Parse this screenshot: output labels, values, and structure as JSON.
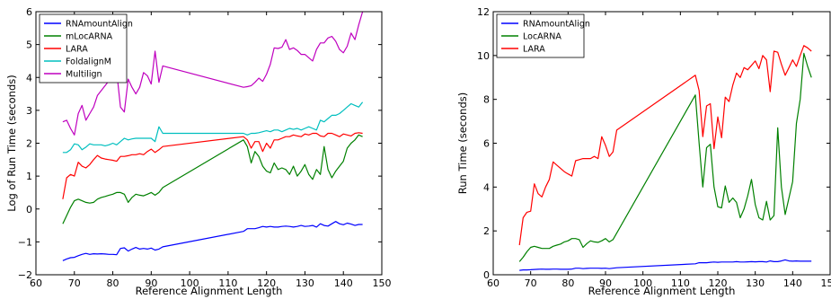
{
  "chart_data": [
    {
      "type": "line",
      "title": "",
      "xlabel": "Reference Alignment Length",
      "ylabel": "Log of Run Time (seconds)",
      "xlim": [
        60,
        150
      ],
      "ylim": [
        -2,
        6
      ],
      "xticks": [
        "60",
        "70",
        "80",
        "90",
        "100",
        "110",
        "120",
        "130",
        "140",
        "150"
      ],
      "yticks": [
        "−2",
        "−1",
        "0",
        "1",
        "2",
        "3",
        "4",
        "5",
        "6"
      ],
      "grid": false,
      "legend": "top-left",
      "series": [
        {
          "name": "RNAmountAlign",
          "color": "#0000ff",
          "x": [
            67,
            68,
            69,
            70,
            71,
            72,
            73,
            74,
            75,
            76,
            77,
            78,
            79,
            80,
            81,
            82,
            83,
            84,
            85,
            86,
            87,
            88,
            89,
            90,
            91,
            92,
            93,
            114,
            115,
            116,
            117,
            118,
            119,
            120,
            121,
            122,
            123,
            124,
            125,
            126,
            127,
            128,
            129,
            130,
            131,
            132,
            133,
            134,
            135,
            136,
            137,
            138,
            139,
            140,
            141,
            142,
            143,
            144,
            145
          ],
          "y": [
            -1.57,
            -1.52,
            -1.48,
            -1.47,
            -1.42,
            -1.38,
            -1.35,
            -1.38,
            -1.36,
            -1.37,
            -1.36,
            -1.37,
            -1.38,
            -1.38,
            -1.39,
            -1.2,
            -1.18,
            -1.28,
            -1.22,
            -1.17,
            -1.22,
            -1.2,
            -1.22,
            -1.19,
            -1.25,
            -1.22,
            -1.15,
            -0.68,
            -0.6,
            -0.6,
            -0.6,
            -0.57,
            -0.53,
            -0.55,
            -0.53,
            -0.55,
            -0.55,
            -0.53,
            -0.52,
            -0.53,
            -0.55,
            -0.53,
            -0.5,
            -0.53,
            -0.52,
            -0.5,
            -0.55,
            -0.45,
            -0.5,
            -0.52,
            -0.45,
            -0.38,
            -0.45,
            -0.48,
            -0.43,
            -0.46,
            -0.5,
            -0.47,
            -0.47
          ]
        },
        {
          "name": "mLocARNA",
          "color": "#008000",
          "x": [
            67,
            68,
            69,
            70,
            71,
            72,
            73,
            74,
            75,
            76,
            77,
            78,
            79,
            80,
            81,
            82,
            83,
            84,
            85,
            86,
            87,
            88,
            89,
            90,
            91,
            92,
            93,
            114,
            115,
            116,
            117,
            118,
            119,
            120,
            121,
            122,
            123,
            124,
            125,
            126,
            127,
            128,
            129,
            130,
            131,
            132,
            133,
            134,
            135,
            136,
            137,
            138,
            139,
            140,
            141,
            142,
            143,
            144,
            145
          ],
          "y": [
            -0.45,
            -0.2,
            0.05,
            0.25,
            0.3,
            0.25,
            0.2,
            0.18,
            0.2,
            0.3,
            0.35,
            0.38,
            0.42,
            0.45,
            0.5,
            0.5,
            0.45,
            0.2,
            0.35,
            0.45,
            0.42,
            0.4,
            0.45,
            0.5,
            0.42,
            0.5,
            0.65,
            2.1,
            1.9,
            1.4,
            1.75,
            1.6,
            1.3,
            1.15,
            1.1,
            1.4,
            1.2,
            1.25,
            1.2,
            1.05,
            1.3,
            1.0,
            1.15,
            1.35,
            1.05,
            0.9,
            1.2,
            1.05,
            1.9,
            1.2,
            0.95,
            1.15,
            1.3,
            1.45,
            1.85,
            2.0,
            2.1,
            2.25,
            2.2
          ]
        },
        {
          "name": "LARA",
          "color": "#ff0000",
          "x": [
            67,
            68,
            69,
            70,
            71,
            72,
            73,
            74,
            75,
            76,
            77,
            78,
            79,
            80,
            81,
            82,
            83,
            84,
            85,
            86,
            87,
            88,
            89,
            90,
            91,
            92,
            93,
            114,
            115,
            116,
            117,
            118,
            119,
            120,
            121,
            122,
            123,
            124,
            125,
            126,
            127,
            128,
            129,
            130,
            131,
            132,
            133,
            134,
            135,
            136,
            137,
            138,
            139,
            140,
            141,
            142,
            143,
            144,
            145
          ],
          "y": [
            0.3,
            0.95,
            1.05,
            1.0,
            1.42,
            1.3,
            1.25,
            1.35,
            1.5,
            1.63,
            1.55,
            1.52,
            1.5,
            1.48,
            1.45,
            1.6,
            1.6,
            1.62,
            1.65,
            1.65,
            1.68,
            1.65,
            1.75,
            1.82,
            1.72,
            1.8,
            1.9,
            2.2,
            2.1,
            1.85,
            2.05,
            2.05,
            1.75,
            2.0,
            1.85,
            2.1,
            2.1,
            2.15,
            2.2,
            2.2,
            2.25,
            2.22,
            2.2,
            2.28,
            2.25,
            2.3,
            2.3,
            2.22,
            2.2,
            2.3,
            2.3,
            2.25,
            2.2,
            2.28,
            2.25,
            2.22,
            2.3,
            2.32,
            2.3
          ]
        },
        {
          "name": "FoldalignM",
          "color": "#00bfbf",
          "x": [
            67,
            68,
            69,
            70,
            71,
            72,
            73,
            74,
            75,
            76,
            77,
            78,
            79,
            80,
            81,
            82,
            83,
            84,
            85,
            86,
            87,
            88,
            89,
            90,
            91,
            92,
            93,
            114,
            115,
            116,
            117,
            118,
            119,
            120,
            121,
            122,
            123,
            124,
            125,
            126,
            127,
            128,
            129,
            130,
            131,
            132,
            133,
            134,
            135,
            136,
            137,
            138,
            139,
            140,
            141,
            142,
            143,
            144,
            145
          ],
          "y": [
            1.72,
            1.72,
            1.8,
            1.98,
            1.95,
            1.8,
            1.88,
            1.98,
            1.95,
            1.95,
            1.95,
            1.92,
            1.95,
            2.0,
            1.95,
            2.05,
            2.15,
            2.1,
            2.13,
            2.15,
            2.15,
            2.15,
            2.15,
            2.15,
            2.05,
            2.5,
            2.3,
            2.3,
            2.25,
            2.3,
            2.3,
            2.32,
            2.35,
            2.38,
            2.35,
            2.4,
            2.4,
            2.35,
            2.4,
            2.45,
            2.42,
            2.45,
            2.4,
            2.45,
            2.5,
            2.45,
            2.4,
            2.7,
            2.65,
            2.75,
            2.85,
            2.85,
            2.9,
            3.0,
            3.1,
            3.2,
            3.15,
            3.1,
            3.25
          ]
        },
        {
          "name": "Multilign",
          "color": "#bf00bf",
          "x": [
            67,
            68,
            69,
            70,
            71,
            72,
            73,
            74,
            75,
            76,
            77,
            78,
            79,
            80,
            81,
            82,
            83,
            84,
            85,
            86,
            87,
            88,
            89,
            90,
            91,
            92,
            93,
            114,
            115,
            116,
            117,
            118,
            119,
            120,
            121,
            122,
            123,
            124,
            125,
            126,
            127,
            128,
            129,
            130,
            131,
            132,
            133,
            134,
            135,
            136,
            137,
            138,
            139,
            140,
            141,
            142,
            143,
            144,
            145
          ],
          "y": [
            2.65,
            2.7,
            2.45,
            2.25,
            2.9,
            3.15,
            2.7,
            2.9,
            3.1,
            3.45,
            3.6,
            3.75,
            3.9,
            4.05,
            4.2,
            3.1,
            2.95,
            3.95,
            3.7,
            3.5,
            3.7,
            4.15,
            4.05,
            3.8,
            4.8,
            3.85,
            4.35,
            3.7,
            3.72,
            3.75,
            3.85,
            3.98,
            3.88,
            4.1,
            4.4,
            4.9,
            4.88,
            4.92,
            5.15,
            4.85,
            4.9,
            4.82,
            4.7,
            4.7,
            4.6,
            4.5,
            4.85,
            5.05,
            5.05,
            5.2,
            5.25,
            5.1,
            4.85,
            4.75,
            4.95,
            5.35,
            5.15,
            5.6,
            6.0
          ]
        }
      ]
    },
    {
      "type": "line",
      "title": "",
      "xlabel": "Reference Alignment Length",
      "ylabel": "Run Time (seconds)",
      "xlim": [
        60,
        150
      ],
      "ylim": [
        0,
        12
      ],
      "xticks": [
        "60",
        "70",
        "80",
        "90",
        "100",
        "110",
        "120",
        "130",
        "140",
        "150"
      ],
      "yticks": [
        "0",
        "2",
        "4",
        "6",
        "8",
        "10",
        "12"
      ],
      "grid": false,
      "legend": "top-left",
      "series": [
        {
          "name": "RNAmountAlign",
          "color": "#0000ff",
          "x": [
            67,
            68,
            69,
            70,
            71,
            72,
            73,
            74,
            75,
            76,
            77,
            78,
            79,
            80,
            81,
            82,
            83,
            84,
            85,
            86,
            87,
            88,
            89,
            90,
            91,
            92,
            93,
            114,
            115,
            116,
            117,
            118,
            119,
            120,
            121,
            122,
            123,
            124,
            125,
            126,
            127,
            128,
            129,
            130,
            131,
            132,
            133,
            134,
            135,
            136,
            137,
            138,
            139,
            140,
            141,
            142,
            143,
            144,
            145
          ],
          "y": [
            0.2,
            0.22,
            0.22,
            0.23,
            0.24,
            0.25,
            0.26,
            0.25,
            0.25,
            0.26,
            0.26,
            0.25,
            0.25,
            0.25,
            0.26,
            0.3,
            0.3,
            0.28,
            0.29,
            0.3,
            0.3,
            0.3,
            0.29,
            0.3,
            0.28,
            0.3,
            0.32,
            0.5,
            0.55,
            0.55,
            0.55,
            0.57,
            0.58,
            0.57,
            0.58,
            0.58,
            0.58,
            0.58,
            0.6,
            0.58,
            0.58,
            0.59,
            0.6,
            0.59,
            0.6,
            0.6,
            0.58,
            0.63,
            0.6,
            0.6,
            0.63,
            0.68,
            0.63,
            0.62,
            0.63,
            0.62,
            0.62,
            0.62,
            0.62
          ]
        },
        {
          "name": "LocARNA",
          "color": "#008000",
          "x": [
            67,
            68,
            69,
            70,
            71,
            72,
            73,
            74,
            75,
            76,
            77,
            78,
            79,
            80,
            81,
            82,
            83,
            84,
            85,
            86,
            87,
            88,
            89,
            90,
            91,
            92,
            93,
            114,
            115,
            116,
            117,
            118,
            119,
            120,
            121,
            122,
            123,
            124,
            125,
            126,
            127,
            128,
            129,
            130,
            131,
            132,
            133,
            134,
            135,
            136,
            137,
            138,
            139,
            140,
            141,
            142,
            143,
            144,
            145
          ],
          "y": [
            0.6,
            0.8,
            1.05,
            1.25,
            1.3,
            1.25,
            1.2,
            1.2,
            1.2,
            1.3,
            1.35,
            1.4,
            1.5,
            1.55,
            1.65,
            1.65,
            1.6,
            1.25,
            1.42,
            1.55,
            1.5,
            1.48,
            1.55,
            1.65,
            1.5,
            1.6,
            1.9,
            8.2,
            6.0,
            4.0,
            5.8,
            5.95,
            4.0,
            3.1,
            3.05,
            4.05,
            3.3,
            3.5,
            3.3,
            2.6,
            3.0,
            3.6,
            4.35,
            3.2,
            2.6,
            2.5,
            3.35,
            2.5,
            2.7,
            6.7,
            4.0,
            2.75,
            3.5,
            4.25,
            6.9,
            8.0,
            10.1,
            9.5,
            9.0
          ]
        },
        {
          "name": "LARA",
          "color": "#ff0000",
          "x": [
            67,
            68,
            69,
            70,
            71,
            72,
            73,
            74,
            75,
            76,
            77,
            78,
            79,
            80,
            81,
            82,
            83,
            84,
            85,
            86,
            87,
            88,
            89,
            90,
            91,
            92,
            93,
            114,
            115,
            116,
            117,
            118,
            119,
            120,
            121,
            122,
            123,
            124,
            125,
            126,
            127,
            128,
            129,
            130,
            131,
            132,
            133,
            134,
            135,
            136,
            137,
            138,
            139,
            140,
            141,
            142,
            143,
            144,
            145
          ],
          "y": [
            1.35,
            2.6,
            2.85,
            2.9,
            4.15,
            3.7,
            3.55,
            4.0,
            4.35,
            5.15,
            5.0,
            4.85,
            4.7,
            4.6,
            4.5,
            5.2,
            5.25,
            5.3,
            5.3,
            5.3,
            5.4,
            5.3,
            6.3,
            5.9,
            5.4,
            5.6,
            6.6,
            9.1,
            8.4,
            6.3,
            7.7,
            7.8,
            5.75,
            7.2,
            6.25,
            8.1,
            7.9,
            8.65,
            9.2,
            9.0,
            9.45,
            9.35,
            9.55,
            9.75,
            9.4,
            10.0,
            9.8,
            8.35,
            10.2,
            10.15,
            9.6,
            9.1,
            9.45,
            9.8,
            9.5,
            10.0,
            10.45,
            10.35,
            10.2
          ]
        }
      ]
    }
  ]
}
